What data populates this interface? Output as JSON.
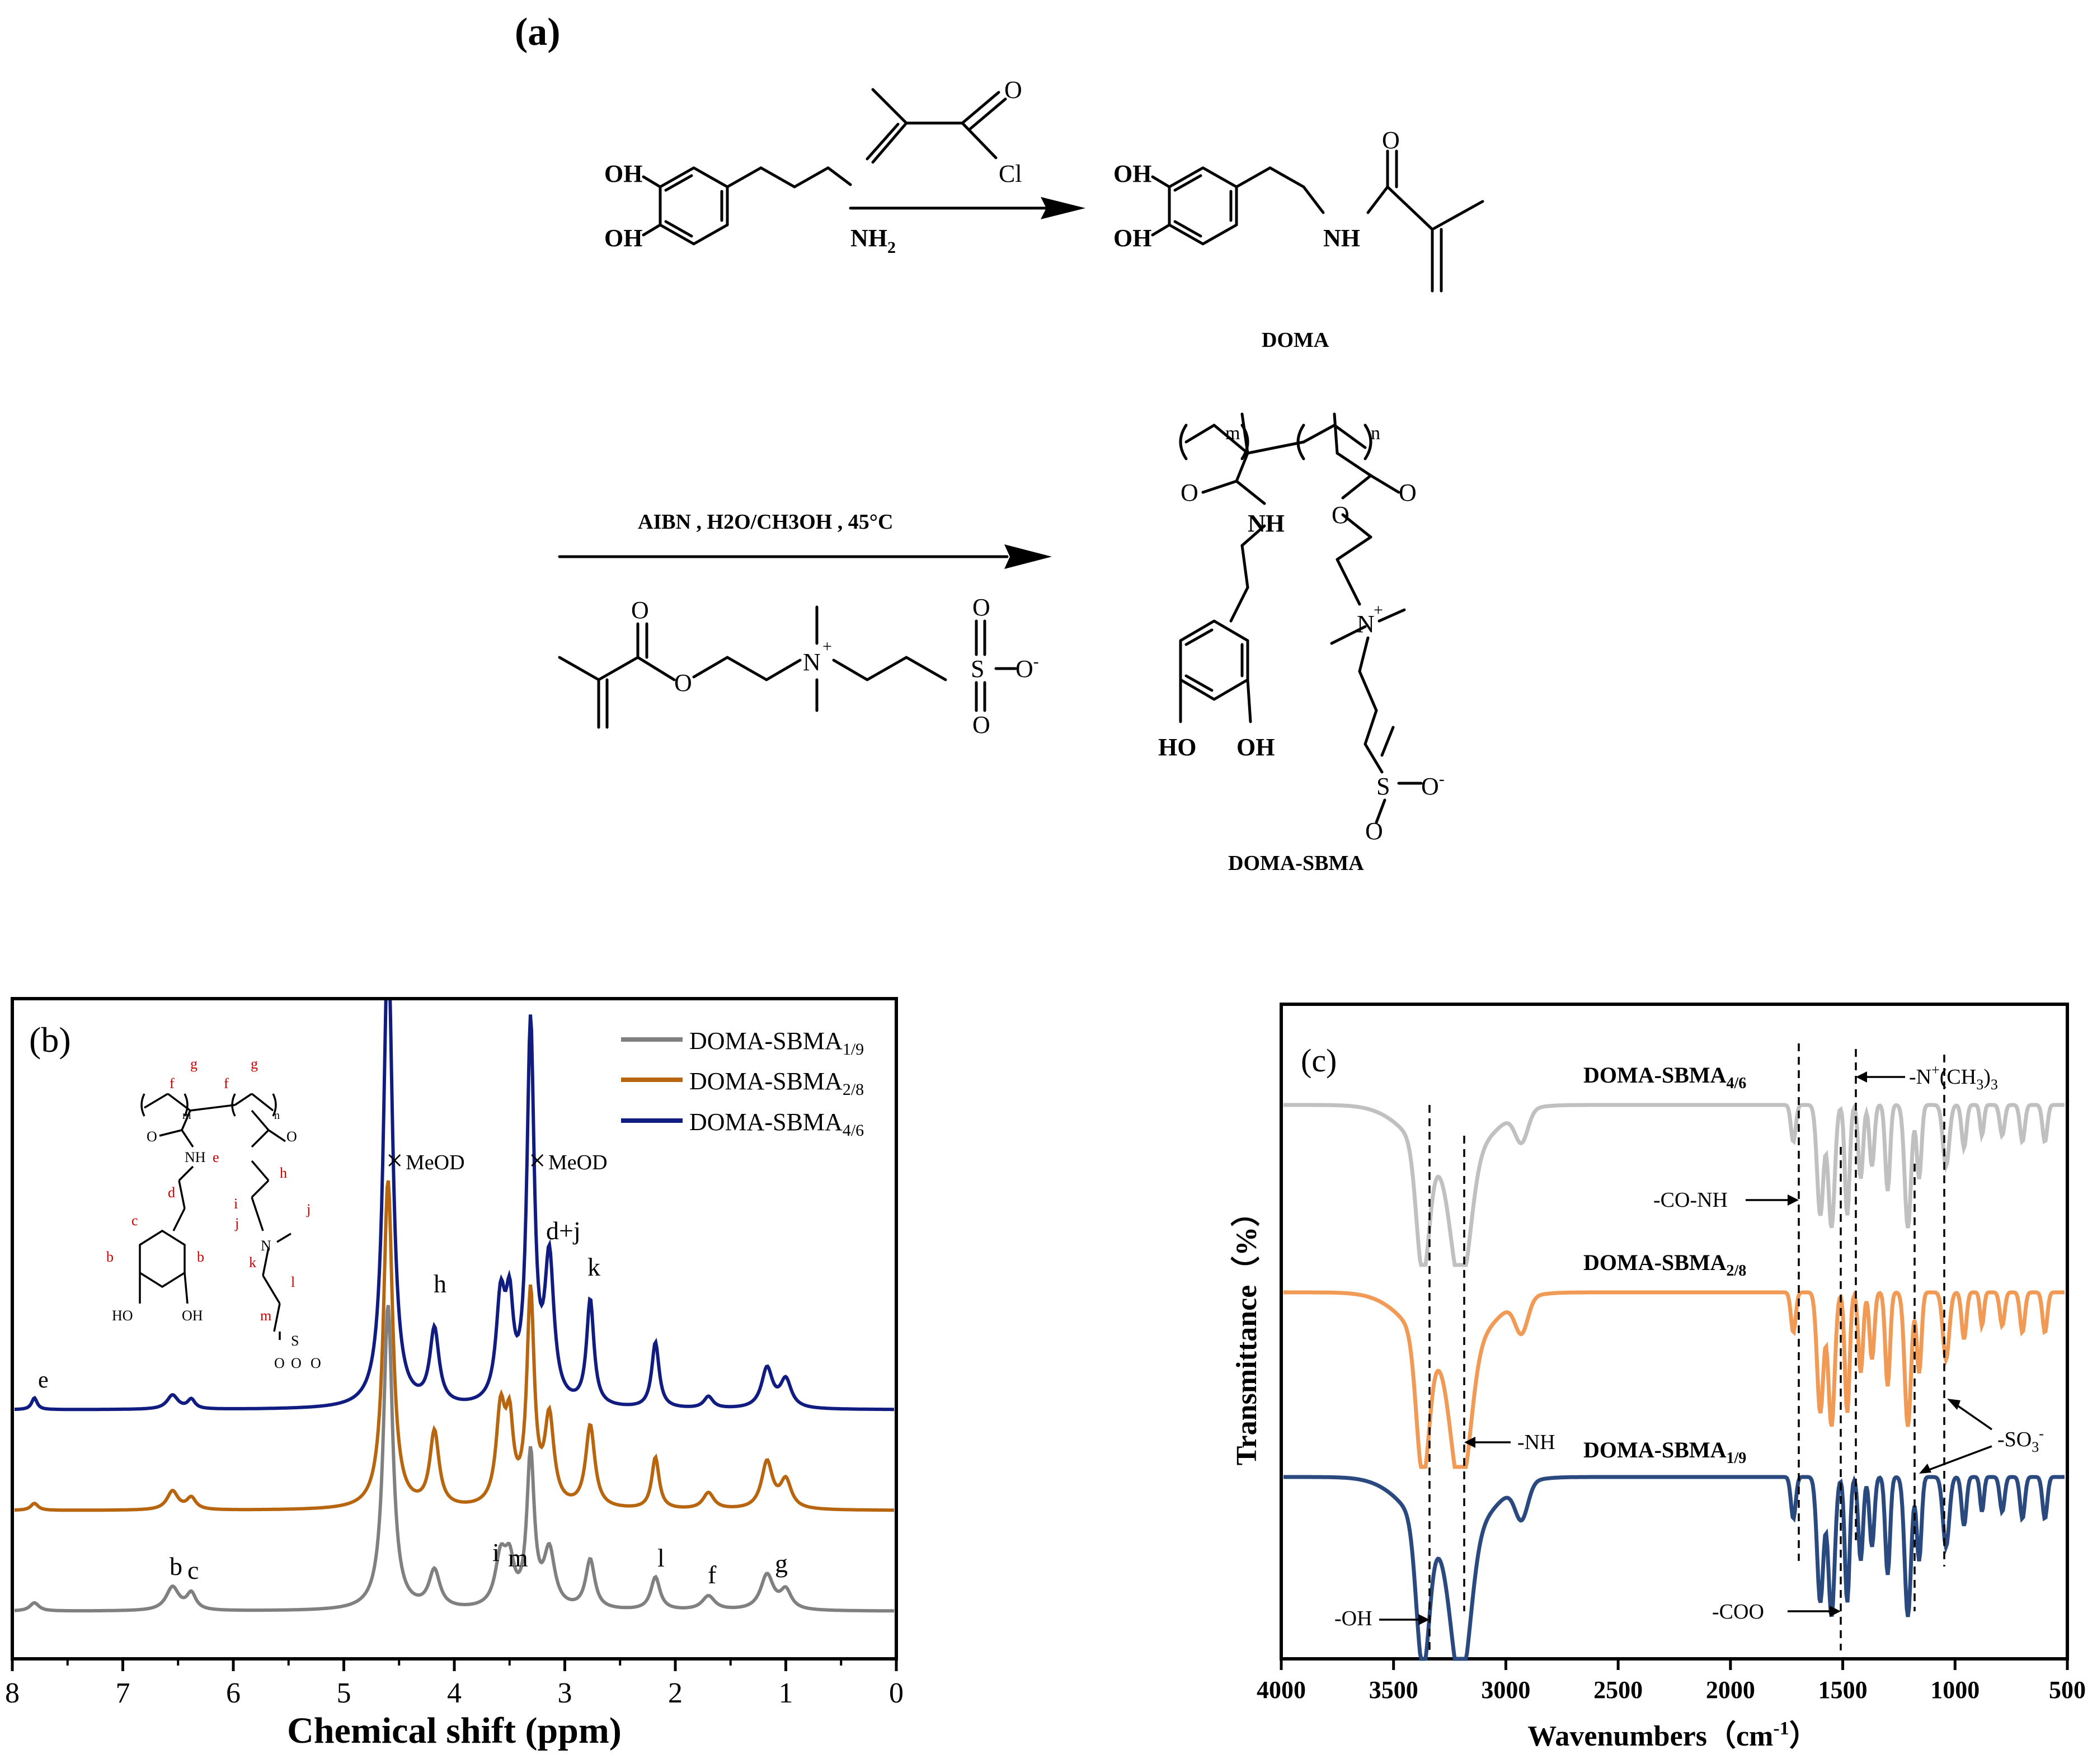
{
  "panel_a": {
    "label": "(a)",
    "reagent_top": "Cl",
    "dopamine_oh1": "OH",
    "dopamine_oh2": "OH",
    "dopamine_nh2": "NH",
    "dopamine_nh2_sub": "2",
    "doma_oh1": "OH",
    "doma_oh2": "OH",
    "doma_nh": "NH",
    "carbonyl_o": "O",
    "doma_name": "DOMA",
    "conditions": "AIBN , H2O/CH3OH , 45°C",
    "sbma_o": "O",
    "sbma_n": "N",
    "sbma_plus": "+",
    "sbma_s": "S",
    "sbma_ominus": "O",
    "minus": "-",
    "poly_m": "m",
    "poly_n": "n",
    "poly_nh": "NH",
    "poly_ho1": "HO",
    "poly_oh2": "OH",
    "product_name": "DOMA-SBMA"
  },
  "panel_b": {
    "label": "(b)",
    "xlabel": "Chemical shift (ppm)",
    "legend": [
      "DOMA-SBMA1/9",
      "DOMA-SBMA2/8",
      "DOMA-SBMA4/6"
    ],
    "legend_main": [
      "DOMA-SBMA",
      "DOMA-SBMA",
      "DOMA-SBMA"
    ],
    "legend_sub": [
      "1/9",
      "2/8",
      "4/6"
    ],
    "meod": "MeOD",
    "peak_labels": {
      "e": "e",
      "h": "h",
      "dj": "d+j",
      "k": "k",
      "b": "b",
      "c": "c",
      "i": "i",
      "m": "m",
      "l": "l",
      "f": "f",
      "g": "g"
    },
    "inset_labels": [
      "f",
      "g",
      "f",
      "g",
      "m",
      "n",
      "NH",
      "e",
      "O",
      "O",
      "d",
      "h",
      "i",
      "j",
      "j",
      "N",
      "c",
      "b",
      "b",
      "k",
      "l",
      "m",
      "HO",
      "OH",
      "S",
      "O",
      "O",
      "O"
    ]
  },
  "panel_c": {
    "label": "(c)",
    "xlabel": "Wavenumbers（cm-1）",
    "xlabel_main": "Wavenumbers（cm",
    "xlabel_sup": "-1",
    "xlabel_close": "）",
    "ylabel": "Transmittance（%）",
    "series_labels": [
      "DOMA-SBMA4/6",
      "DOMA-SBMA2/8",
      "DOMA-SBMA1/9"
    ],
    "annotations": {
      "oh": "-OH",
      "nh": "-NH",
      "coo": "-COO",
      "conh": "-CO-NH",
      "n_main": "-N",
      "n_sup": "+",
      "n_rest": "(CH",
      "n_sub": "3",
      "n_close": ")",
      "n_sub2": "3",
      "so3": "-SO",
      "so3_sub": "3",
      "so3_sup": "-"
    }
  },
  "chart_data": [
    {
      "type": "line",
      "panel": "b",
      "xlabel": "Chemical shift (ppm)",
      "xlim": [
        8,
        0
      ],
      "x_ticks": [
        8,
        7,
        6,
        5,
        4,
        3,
        2,
        1,
        0
      ],
      "y_ticks_visible": false,
      "legend_position": "top-right",
      "peaks_ppm": {
        "e": 7.8,
        "b": 6.55,
        "c": 6.38,
        "MeOD_1": 4.6,
        "h": 4.18,
        "i": 3.58,
        "m": 3.5,
        "MeOD_2": 3.31,
        "d+j": 3.14,
        "k": 2.77,
        "l": 2.18,
        "f": 1.7,
        "g": 1.17
      },
      "series": [
        {
          "name": "DOMA-SBMA1/9",
          "color": "#808080"
        },
        {
          "name": "DOMA-SBMA2/8",
          "color": "#b8650f"
        },
        {
          "name": "DOMA-SBMA4/6",
          "color": "#101c80"
        }
      ]
    },
    {
      "type": "line",
      "panel": "c",
      "xlabel": "Wavenumbers（cm-1）",
      "ylabel": "Transmittance（%）",
      "xlim": [
        4000,
        500
      ],
      "x_ticks": [
        4000,
        3500,
        3000,
        2500,
        2000,
        1500,
        1000,
        500
      ],
      "y_ticks_visible": false,
      "band_positions_cm1": {
        "-OH": 3370,
        "-NH": 3200,
        "-CO-NH": 1720,
        "-COO": 1550,
        "-N+(CH3)3": 1480,
        "-SO3-": [
          1210,
          1040
        ]
      },
      "series": [
        {
          "name": "DOMA-SBMA4/6",
          "color": "#c0c0c0"
        },
        {
          "name": "DOMA-SBMA2/8",
          "color": "#f09a55"
        },
        {
          "name": "DOMA-SBMA1/9",
          "color": "#2a4a7f"
        }
      ]
    }
  ]
}
